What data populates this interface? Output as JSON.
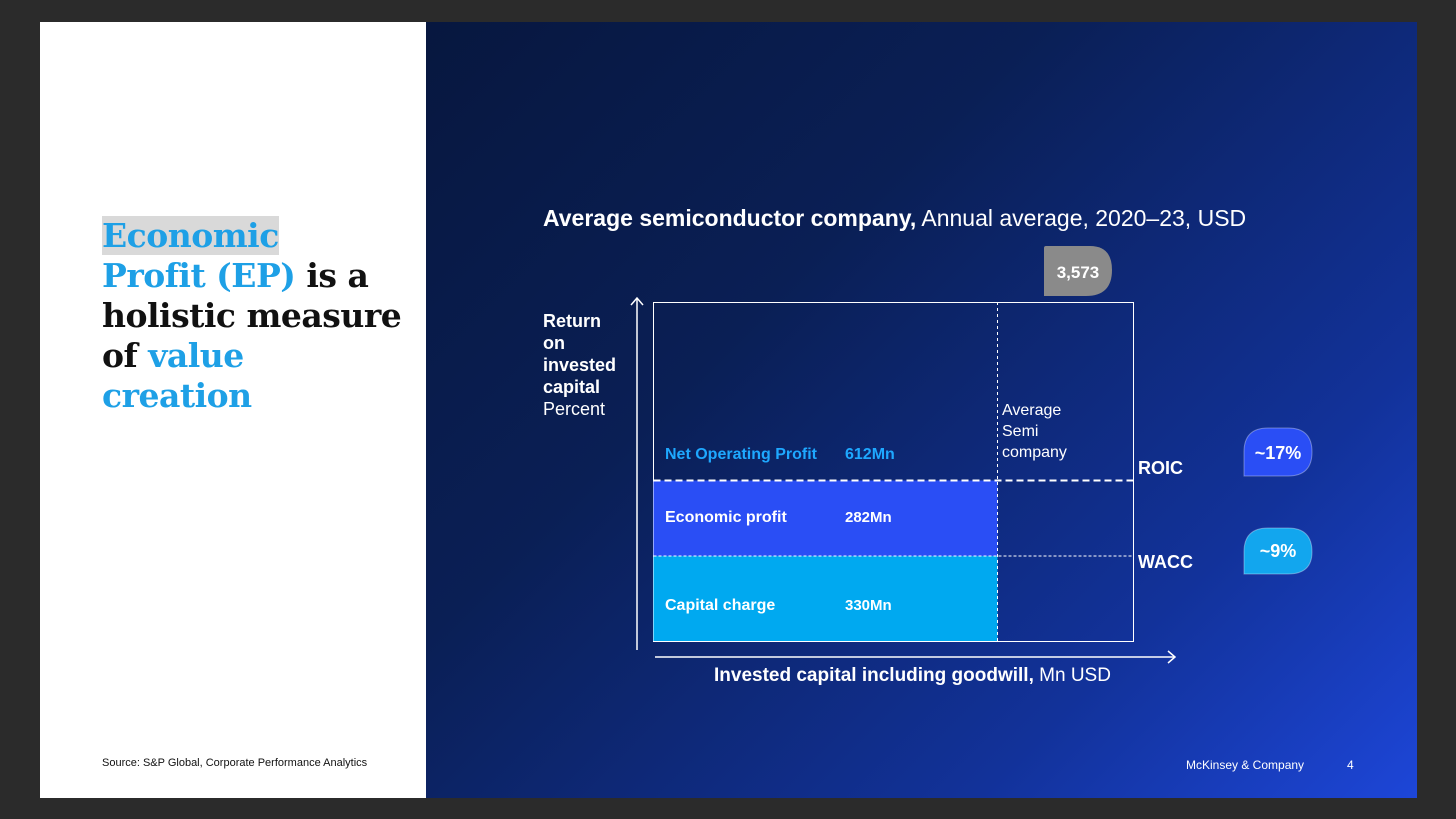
{
  "headline": {
    "part1": "Economic",
    "part2": "Profit (EP)",
    "part3": " is a holistic measure of ",
    "part4": "value creation"
  },
  "source": "Source: S&P Global, Corporate Performance Analytics",
  "footer": {
    "brand": "McKinsey & Company",
    "page": "4"
  },
  "colors": {
    "economic_profit": "#2a4ef5",
    "capital_charge": "#00a9f0",
    "nop_label": "#1ea8ff",
    "bubble_gray": "#8a8a8a",
    "bubble_blue": "#2a4ef5",
    "bubble_cyan": "#12a6ee"
  },
  "chart_data": {
    "type": "bar",
    "title_bold": "Average semiconductor company,",
    "title_rest": " Annual average, 2020–23, USD",
    "ylabel_bold": [
      "Return",
      "on",
      "invested",
      "capital"
    ],
    "ylabel_unit": "Percent",
    "xlabel_bold": "Invested capital including goodwill,",
    "xlabel_rest": " Mn USD",
    "invested_capital": {
      "label": "3,573",
      "value": 3573
    },
    "average_company_label": [
      "Average",
      "Semi",
      "company"
    ],
    "roic": {
      "label": "ROIC",
      "value": 17,
      "callout": "~17%"
    },
    "wacc": {
      "label": "WACC",
      "value": 9,
      "callout": "~9%"
    },
    "segments": [
      {
        "name": "Net Operating Profit",
        "value_label": "612Mn",
        "value": 612
      },
      {
        "name": "Economic profit",
        "value_label": "282Mn",
        "value": 282
      },
      {
        "name": "Capital charge",
        "value_label": "330Mn",
        "value": 330
      }
    ]
  }
}
